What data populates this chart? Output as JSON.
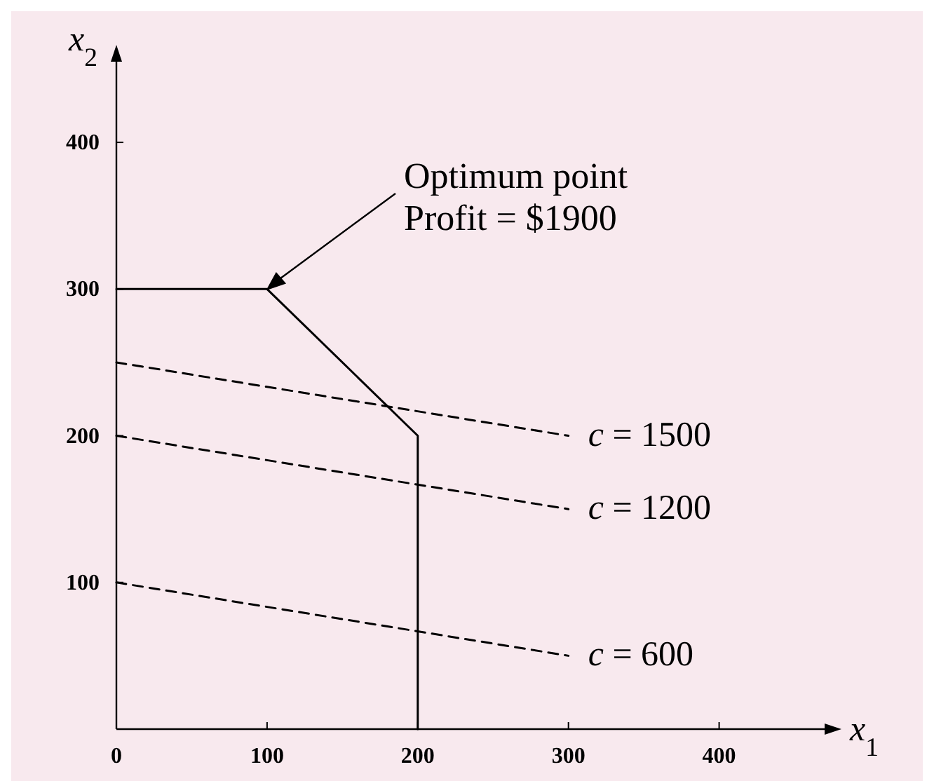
{
  "chart_data": {
    "type": "line",
    "xlabel": "x$_{1}$",
    "ylabel": "x$_{2}$",
    "xlim": [
      0,
      470
    ],
    "ylim": [
      0,
      455
    ],
    "xticks": [
      0,
      100,
      200,
      300,
      400
    ],
    "yticks": [
      100,
      200,
      300,
      400
    ],
    "marker": "none",
    "series": [
      {
        "color": "#000000",
        "line_style": "solid",
        "x": [
          0,
          100,
          200,
          200
        ],
        "values": [
          300,
          300,
          200,
          0
        ]
      },
      {
        "name": "c = 1500",
        "color": "#000000",
        "line_style": "dashed",
        "x": [
          0,
          300
        ],
        "values": [
          250,
          200
        ]
      },
      {
        "name": "c = 1200",
        "color": "#000000",
        "line_style": "dashed",
        "x": [
          0,
          300
        ],
        "values": [
          200,
          150
        ]
      },
      {
        "name": "c = 600",
        "color": "#000000",
        "line_style": "dashed",
        "x": [
          0,
          300
        ],
        "values": [
          100,
          50
        ]
      }
    ],
    "annotations": [
      "Optimum point\nProfit = $1900"
    ]
  }
}
